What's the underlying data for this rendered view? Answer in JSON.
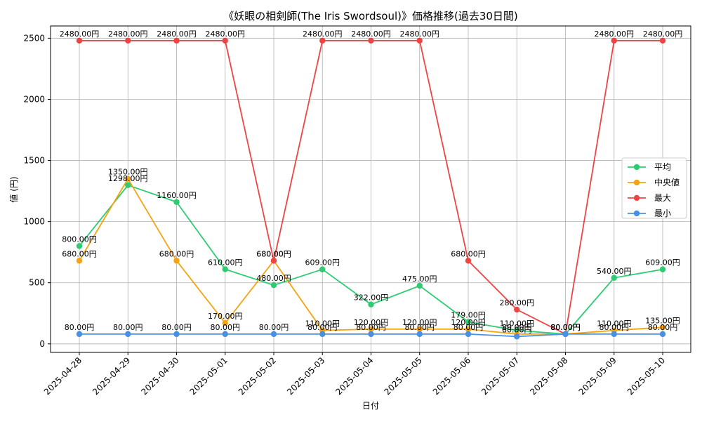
{
  "chart_data": {
    "type": "line",
    "title": "《妖眼の相剣師(The Iris Swordsoul)》価格推移(過去30日間)",
    "xlabel": "日付",
    "ylabel": "値 (円)",
    "ylim": [
      -70,
      2600
    ],
    "yticks": [
      0,
      500,
      1000,
      1500,
      2000,
      2500
    ],
    "grid": true,
    "legend_position": "center-right",
    "categories": [
      "2025-04-28",
      "2025-04-29",
      "2025-04-30",
      "2025-05-01",
      "2025-05-02",
      "2025-05-03",
      "2025-05-04",
      "2025-05-05",
      "2025-05-06",
      "2025-05-07",
      "2025-05-08",
      "2025-05-09",
      "2025-05-10"
    ],
    "series": [
      {
        "name": "平均",
        "color": "#2ecc71",
        "values": [
          800,
          1298,
          1160,
          610,
          480,
          609,
          322,
          475,
          179,
          110,
          80,
          540,
          609
        ],
        "labels": [
          "800.00円",
          "1298.00円",
          "1160.00円",
          "610.00円",
          "480.00円",
          "609.00円",
          "322.00円",
          "475.00円",
          "179.00円",
          "110.00円",
          "80.00円",
          "540.00円",
          "609.00円"
        ]
      },
      {
        "name": "中央値",
        "color": "#f5a40f",
        "values": [
          680,
          1350,
          680,
          170,
          680,
          110,
          120,
          120,
          120,
          80,
          80,
          110,
          135
        ],
        "labels": [
          "680.00円",
          "1350.00円",
          "680.00円",
          "170.00円",
          "680.00円",
          "110.00円",
          "120.00円",
          "120.00円",
          "120.00円",
          "80.00円",
          "80.00円",
          "110.00円",
          "135.00円"
        ]
      },
      {
        "name": "最大",
        "color": "#ef4444",
        "values": [
          2480,
          2480,
          2480,
          2480,
          680,
          2480,
          2480,
          2480,
          680,
          280,
          80,
          2480,
          2480
        ],
        "labels": [
          "2480.00円",
          "2480.00円",
          "2480.00円",
          "2480.00円",
          "680.00円",
          "2480.00円",
          "2480.00円",
          "2480.00円",
          "680.00円",
          "280.00円",
          "80.00円",
          "2480.00円",
          "2480.00円"
        ]
      },
      {
        "name": "最小",
        "color": "#4a90e2",
        "values": [
          80,
          80,
          80,
          80,
          80,
          80,
          80,
          80,
          80,
          60,
          80,
          80,
          80
        ],
        "labels": [
          "80.00円",
          "80.00円",
          "80.00円",
          "80.00円",
          "80.00円",
          "80.00円",
          "80.00円",
          "80.00円",
          "80.00円",
          "60.00円",
          "80.00円",
          "80.00円",
          "80.00円"
        ]
      }
    ]
  }
}
